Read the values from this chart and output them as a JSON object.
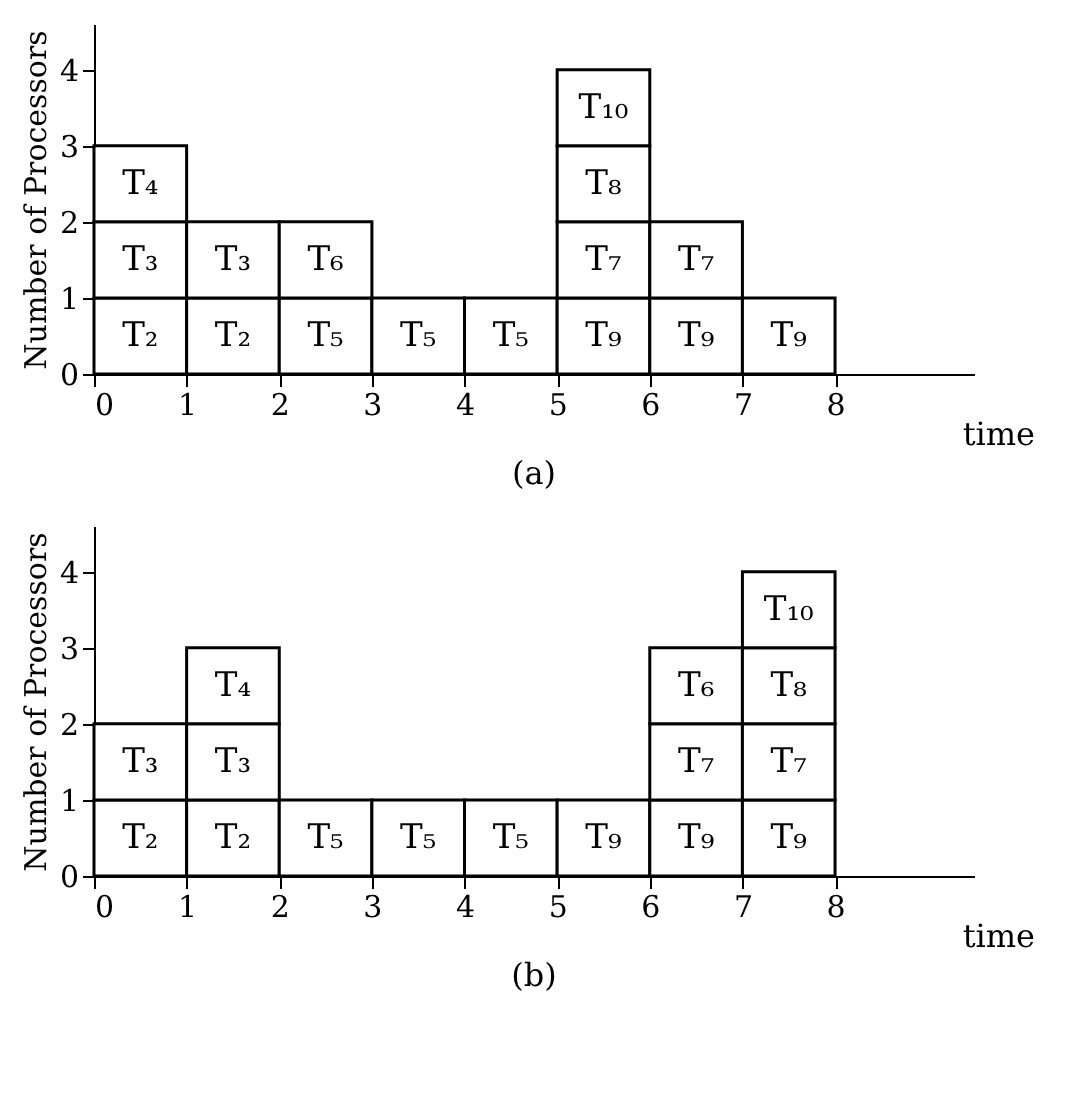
{
  "chart_data": [
    {
      "type": "bar",
      "stacked": true,
      "xlabel": "time",
      "ylabel": "Number of Processors",
      "annotations": [
        "(a)"
      ],
      "x": [
        0.5,
        1.5,
        2.5,
        3.5,
        4.5,
        5.5,
        6.5,
        7.5
      ],
      "xlim": [
        0,
        9.5
      ],
      "xticks": [
        0,
        1,
        2,
        3,
        4,
        5,
        6,
        7,
        8
      ],
      "ylim": [
        0,
        4.6
      ],
      "yticks": [
        0,
        1,
        2,
        3,
        4
      ],
      "series": [
        {
          "color": "#ffffff",
          "values": [
            1,
            1,
            1,
            1,
            1,
            1,
            1,
            1
          ],
          "value_labels": [
            "T₂",
            "T₂",
            "T₅",
            "T₅",
            "T₅",
            "T₉",
            "T₉",
            "T₉"
          ]
        },
        {
          "color": "#ffffff",
          "values": [
            1,
            1,
            1,
            null,
            null,
            1,
            1,
            null
          ],
          "value_labels": [
            "T₃",
            "T₃",
            "T₆",
            null,
            null,
            "T₇",
            "T₇",
            null
          ]
        },
        {
          "color": "#ffffff",
          "values": [
            1,
            null,
            null,
            null,
            null,
            1,
            null,
            null
          ],
          "value_labels": [
            "T₄",
            null,
            null,
            null,
            null,
            "T₈",
            null,
            null
          ]
        },
        {
          "color": "#ffffff",
          "values": [
            null,
            null,
            null,
            null,
            null,
            1,
            null,
            null
          ],
          "value_labels": [
            null,
            null,
            null,
            null,
            null,
            "T₁₀",
            null,
            null
          ]
        }
      ]
    },
    {
      "type": "bar",
      "stacked": true,
      "xlabel": "time",
      "ylabel": "Number of Processors",
      "annotations": [
        "(b)"
      ],
      "x": [
        0.5,
        1.5,
        2.5,
        3.5,
        4.5,
        5.5,
        6.5,
        7.5
      ],
      "xlim": [
        0,
        9.5
      ],
      "xticks": [
        0,
        1,
        2,
        3,
        4,
        5,
        6,
        7,
        8
      ],
      "ylim": [
        0,
        4.6
      ],
      "yticks": [
        0,
        1,
        2,
        3,
        4
      ],
      "series": [
        {
          "color": "#ffffff",
          "values": [
            1,
            1,
            1,
            1,
            1,
            1,
            1,
            1
          ],
          "value_labels": [
            "T₂",
            "T₂",
            "T₅",
            "T₅",
            "T₅",
            "T₉",
            "T₉",
            "T₉"
          ]
        },
        {
          "color": "#ffffff",
          "values": [
            1,
            1,
            null,
            null,
            null,
            null,
            1,
            1
          ],
          "value_labels": [
            "T₃",
            "T₃",
            null,
            null,
            null,
            null,
            "T₇",
            "T₇"
          ]
        },
        {
          "color": "#ffffff",
          "values": [
            null,
            1,
            null,
            null,
            null,
            null,
            1,
            1
          ],
          "value_labels": [
            null,
            "T₄",
            null,
            null,
            null,
            null,
            "T₆",
            "T₈"
          ]
        },
        {
          "color": "#ffffff",
          "values": [
            null,
            null,
            null,
            null,
            null,
            null,
            null,
            1
          ],
          "value_labels": [
            null,
            null,
            null,
            null,
            null,
            null,
            null,
            "T₁₀"
          ]
        }
      ]
    }
  ]
}
